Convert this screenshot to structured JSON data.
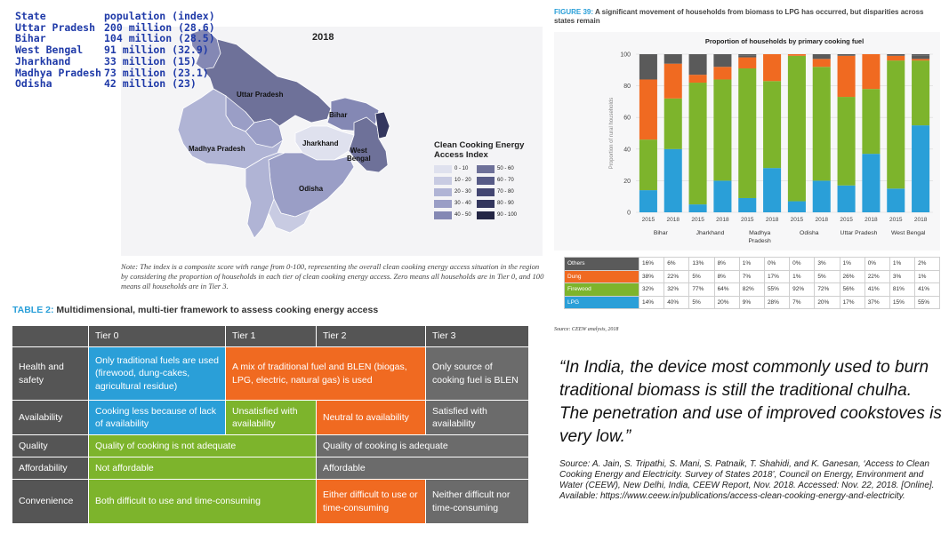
{
  "population_table": {
    "header": [
      "State",
      "population (index)"
    ],
    "rows": [
      [
        "Uttar Pradesh",
        "200 million (28.6)"
      ],
      [
        "Bihar",
        "104 million (28.5)"
      ],
      [
        "West Bengal",
        "91 million (32.9)"
      ],
      [
        "Jharkhand",
        "33 million (15)"
      ],
      [
        "Madhya Pradesh",
        "73 million (23.1)"
      ],
      [
        "Odisha",
        "42 million (23)"
      ]
    ]
  },
  "map": {
    "year": "2018",
    "states": {
      "uttar_pradesh": "Uttar Pradesh",
      "bihar": "Bihar",
      "madhya_pradesh": "Madhya Pradesh",
      "jharkhand": "Jharkhand",
      "west_bengal": "West\nBengal",
      "odisha": "Odisha"
    },
    "legend_title": "Clean Cooking Energy Access Index",
    "legend": [
      {
        "label": "0 - 10",
        "color": "#dfe1ee"
      },
      {
        "label": "50 - 60",
        "color": "#6e7199"
      },
      {
        "label": "10 - 20",
        "color": "#c8cbe2"
      },
      {
        "label": "60 - 70",
        "color": "#575b87"
      },
      {
        "label": "20 - 30",
        "color": "#b0b4d5"
      },
      {
        "label": "70 - 80",
        "color": "#434672"
      },
      {
        "label": "30 - 40",
        "color": "#9a9ec6"
      },
      {
        "label": "80 - 90",
        "color": "#33365e"
      },
      {
        "label": "40 - 50",
        "color": "#8488b4"
      },
      {
        "label": "90 - 100",
        "color": "#242645"
      }
    ],
    "note": "Note: The index is a composite score with range from 0-100, representing the overall clean cooking energy access situation in the region by considering the proportion of households in each tier of clean cooking energy access. Zero means all households are in Tier 0, and 100 means all households are in Tier 3."
  },
  "table2": {
    "title_lead": "TABLE 2:",
    "title_rest": " Multidimensional, multi-tier framework to assess cooking energy access",
    "headers": [
      "Tier 0",
      "Tier 1",
      "Tier 2",
      "Tier 3"
    ],
    "rows": {
      "health": {
        "label": "Health and safety",
        "tier0": "Only traditional fuels are used (firewood, dung-cakes, agricultural residue)",
        "tier12": "A mix of traditional fuel and BLEN (biogas, LPG, electric, natural gas) is used",
        "tier3": "Only source of cooking fuel is BLEN"
      },
      "availability": {
        "label": "Availability",
        "tier0": "Cooking less because of lack of availability",
        "tier1": "Unsatisfied with availability",
        "tier2": "Neutral to availability",
        "tier3": "Satisfied with availability"
      },
      "quality": {
        "label": "Quality",
        "tier01": "Quality of cooking is not adequate",
        "tier23": "Quality of cooking is adequate"
      },
      "affordability": {
        "label": "Affordability",
        "tier01": "Not affordable",
        "tier23": "Affordable"
      },
      "convenience": {
        "label": "Convenience",
        "tier01": "Both difficult to use and time-consuming",
        "tier2": "Either difficult to use or time-consuming",
        "tier3": "Neither difficult nor time-consuming"
      }
    }
  },
  "figure": {
    "title_lead": "FIGURE 39:",
    "title_rest": " A significant movement of households from biomass to LPG has occurred, but disparities across states remain",
    "source": "Source: CEEW analysis, 2018",
    "colors": {
      "Others": "#5a5a5a",
      "Dung": "#f06a21",
      "Firewood": "#7db42c",
      "LPG": "#2a9fd8"
    }
  },
  "chart_data": {
    "type": "bar",
    "stacked": true,
    "title": "Proportion of households by primary cooking fuel",
    "ylabel": "Proportion of rural households",
    "ylim": [
      0,
      100
    ],
    "yticks": [
      0,
      20,
      40,
      60,
      80,
      100
    ],
    "categories": [
      "2015",
      "2018",
      "2015",
      "2018",
      "2015",
      "2018",
      "2015",
      "2018",
      "2015",
      "2018",
      "2015",
      "2018"
    ],
    "groups": [
      "Bihar",
      "Jharkhand",
      "Madhya\nPradesh",
      "Odisha",
      "Uttar Pradesh",
      "West Bengal"
    ],
    "series": [
      {
        "name": "Others",
        "values": [
          16,
          6,
          13,
          8,
          1,
          0,
          0,
          3,
          1,
          0,
          1,
          2
        ],
        "labels": [
          "16%",
          "6%",
          "13%",
          "8%",
          "1%",
          "0%",
          "0%",
          "3%",
          "1%",
          "0%",
          "1%",
          "2%"
        ]
      },
      {
        "name": "Dung",
        "values": [
          38,
          22,
          5,
          8,
          7,
          17,
          1,
          5,
          26,
          22,
          3,
          1
        ],
        "labels": [
          "38%",
          "22%",
          "5%",
          "8%",
          "7%",
          "17%",
          "1%",
          "5%",
          "26%",
          "22%",
          "3%",
          "1%"
        ]
      },
      {
        "name": "Firewood",
        "values": [
          32,
          32,
          77,
          64,
          82,
          55,
          92,
          72,
          56,
          41,
          81,
          41
        ],
        "labels": [
          "32%",
          "32%",
          "77%",
          "64%",
          "82%",
          "55%",
          "92%",
          "72%",
          "56%",
          "41%",
          "81%",
          "41%"
        ]
      },
      {
        "name": "LPG",
        "values": [
          14,
          40,
          5,
          20,
          9,
          28,
          7,
          20,
          17,
          37,
          15,
          55
        ],
        "labels": [
          "14%",
          "40%",
          "5%",
          "20%",
          "9%",
          "28%",
          "7%",
          "20%",
          "17%",
          "37%",
          "15%",
          "55%"
        ]
      }
    ]
  },
  "quote": {
    "text": "“In India, the device most commonly used to burn traditional biomass is still the traditional chulha. The penetration and use of improved cookstoves is very low.”",
    "source": "Source: A. Jain, S. Tripathi, S. Mani, S. Patnaik, T. Shahidi, and K. Ganesan, ‘Access to Clean Cooking Energy and Electricity. Survey of States 2018’, Council on Energy, Environment and Water (CEEW), New Delhi, India, CEEW Report, Nov. 2018. Accessed: Nov. 22, 2018. [Online]. Available: https://www.ceew.in/publications/access-clean-cooking-energy-and-electricity."
  }
}
